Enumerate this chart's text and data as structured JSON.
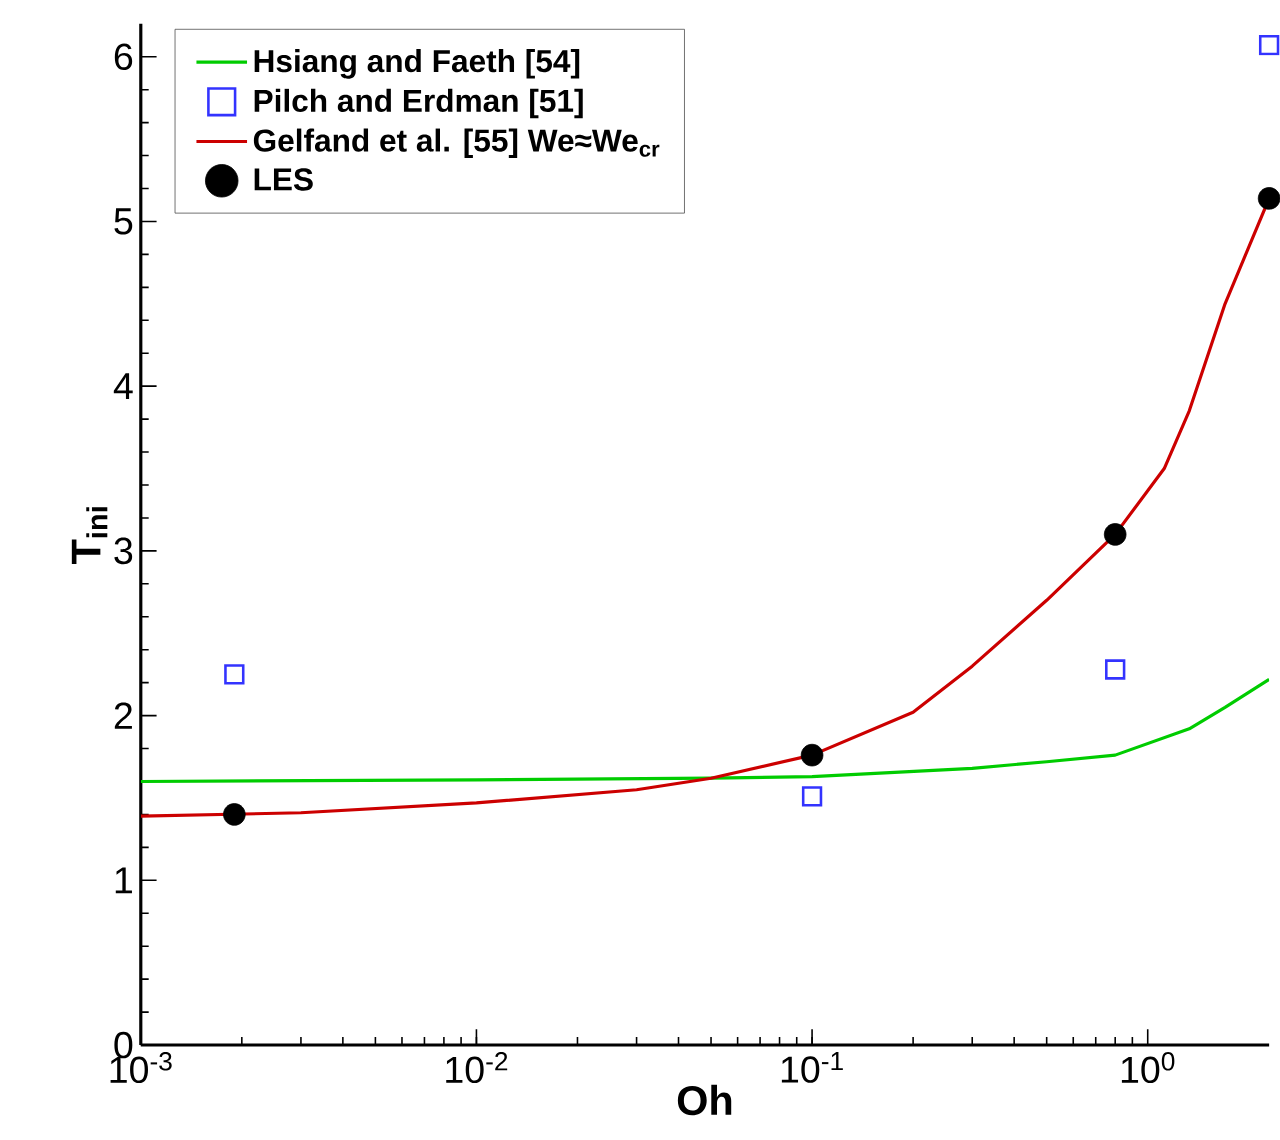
{
  "chart_data": {
    "type": "line",
    "xlabel": "Oh",
    "ylabel": "T$_{ini}$",
    "log": "x",
    "xlim": [
      0.001,
      2.3
    ],
    "ylim": [
      0,
      6.2
    ],
    "xticks": [
      {
        "value": 0.001,
        "label": "10$^{-3}$"
      },
      {
        "value": 0.01,
        "label": "10$^{-2}$"
      },
      {
        "value": 0.1,
        "label": "10$^{-1}$"
      },
      {
        "value": 1,
        "label": "10$^{0}$"
      }
    ],
    "yticks": [
      0,
      1,
      2,
      3,
      4,
      5,
      6
    ],
    "legend": "top left",
    "grid": false,
    "series": [
      {
        "name": "Hsiang and Faeth [54]",
        "marker": "none",
        "line_style": "solid",
        "color": "#00cc00",
        "x": [
          0.001,
          0.01,
          0.05,
          0.1,
          0.3,
          0.5,
          0.8,
          1.33,
          1.7,
          2.3
        ],
        "values": [
          1.6,
          1.61,
          1.62,
          1.63,
          1.68,
          1.72,
          1.76,
          1.92,
          2.05,
          2.22
        ]
      },
      {
        "name": "Pilch and Erdman [51]",
        "type": "scatter",
        "marker": "square",
        "color": "#3333ff",
        "x": [
          0.0019,
          0.1,
          0.8,
          2.3
        ],
        "values": [
          2.25,
          1.51,
          2.28,
          6.07
        ]
      },
      {
        "name": "Gelfand et al. [55] We≈We$_{cr}$",
        "marker": "none",
        "line_style": "solid",
        "color": "#cc0000",
        "x": [
          0.001,
          0.003,
          0.01,
          0.03,
          0.05,
          0.1,
          0.2,
          0.3,
          0.5,
          0.8,
          1.12,
          1.33,
          1.7,
          2.3
        ],
        "values": [
          1.39,
          1.41,
          1.47,
          1.55,
          1.62,
          1.76,
          2.02,
          2.3,
          2.7,
          3.1,
          3.5,
          3.85,
          4.5,
          5.14
        ]
      },
      {
        "name": "LES",
        "type": "scatter",
        "marker": "circle",
        "color": "#000000",
        "x": [
          0.0019,
          0.1,
          0.8,
          2.3
        ],
        "values": [
          1.4,
          1.76,
          3.1,
          5.14
        ]
      }
    ]
  }
}
